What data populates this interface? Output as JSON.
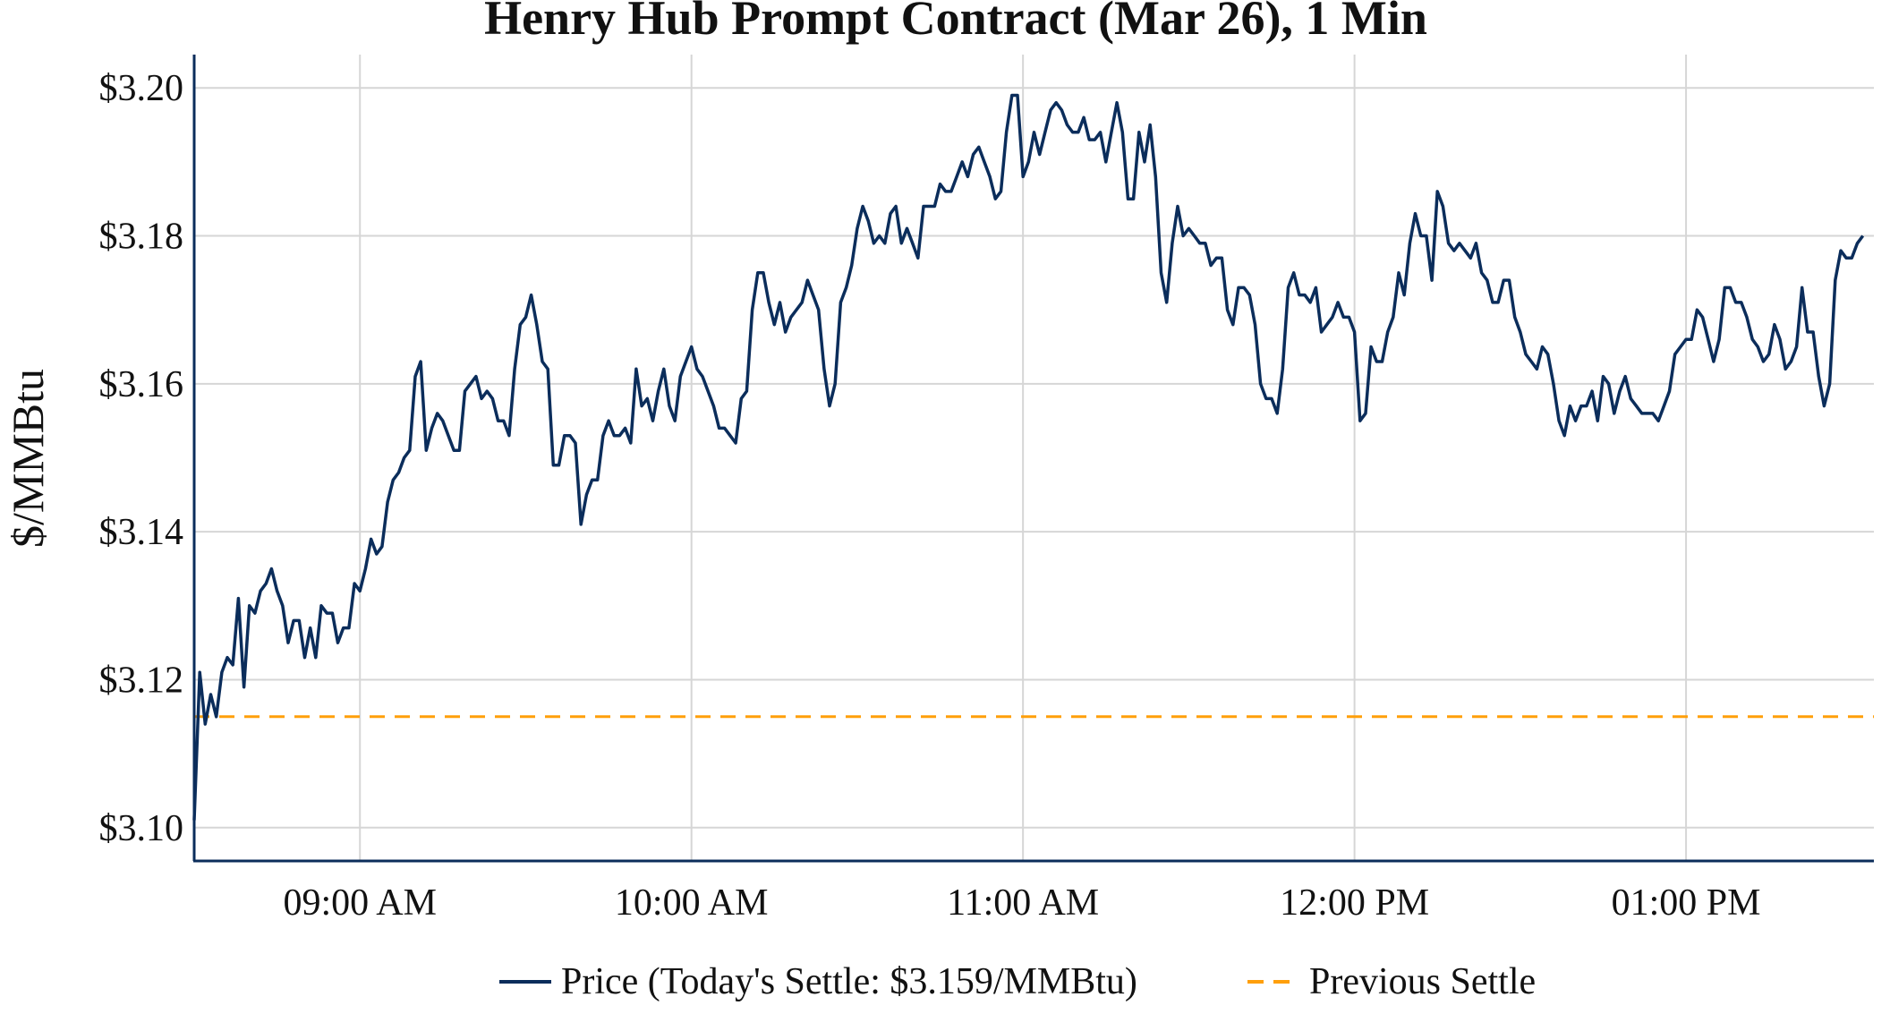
{
  "chart_data": {
    "type": "line",
    "title": "Henry Hub Prompt Contract (Mar 26), 1 Min",
    "xlabel": "",
    "ylabel": "$/MMBtu",
    "x_start": "08:30",
    "x_interval_minutes": 1,
    "xlim": [
      "08:30",
      "13:34"
    ],
    "ylim": [
      3.0955,
      3.2045
    ],
    "y_ticks": [
      3.1,
      3.12,
      3.14,
      3.16,
      3.18,
      3.2
    ],
    "y_tick_labels": [
      "$3.10",
      "$3.12",
      "$3.14",
      "$3.16",
      "$3.18",
      "$3.20"
    ],
    "x_ticks": [
      "09:00",
      "10:00",
      "11:00",
      "12:00",
      "13:00"
    ],
    "x_tick_labels": [
      "09:00 AM",
      "10:00 AM",
      "11:00 AM",
      "12:00 PM",
      "01:00 PM"
    ],
    "grid": true,
    "legend_position": "bottom-center",
    "series": [
      {
        "name": "Price (Today's Settle: $3.159/MMBtu)",
        "color": "#0b2d5b",
        "style": "solid",
        "values": [
          3.101,
          3.121,
          3.114,
          3.118,
          3.115,
          3.121,
          3.123,
          3.122,
          3.131,
          3.119,
          3.13,
          3.129,
          3.132,
          3.133,
          3.135,
          3.132,
          3.13,
          3.125,
          3.128,
          3.128,
          3.123,
          3.127,
          3.123,
          3.13,
          3.129,
          3.129,
          3.125,
          3.127,
          3.127,
          3.133,
          3.132,
          3.135,
          3.139,
          3.137,
          3.138,
          3.144,
          3.147,
          3.148,
          3.15,
          3.151,
          3.161,
          3.163,
          3.151,
          3.154,
          3.156,
          3.155,
          3.153,
          3.151,
          3.151,
          3.159,
          3.16,
          3.161,
          3.158,
          3.159,
          3.158,
          3.155,
          3.155,
          3.153,
          3.162,
          3.168,
          3.169,
          3.172,
          3.168,
          3.163,
          3.162,
          3.149,
          3.149,
          3.153,
          3.153,
          3.152,
          3.141,
          3.145,
          3.147,
          3.147,
          3.153,
          3.155,
          3.153,
          3.153,
          3.154,
          3.152,
          3.162,
          3.157,
          3.158,
          3.155,
          3.159,
          3.162,
          3.157,
          3.155,
          3.161,
          3.163,
          3.165,
          3.162,
          3.161,
          3.159,
          3.157,
          3.154,
          3.154,
          3.153,
          3.152,
          3.158,
          3.159,
          3.17,
          3.175,
          3.175,
          3.171,
          3.168,
          3.171,
          3.167,
          3.169,
          3.17,
          3.171,
          3.174,
          3.172,
          3.17,
          3.162,
          3.157,
          3.16,
          3.171,
          3.173,
          3.176,
          3.181,
          3.184,
          3.182,
          3.179,
          3.18,
          3.179,
          3.183,
          3.184,
          3.179,
          3.181,
          3.179,
          3.177,
          3.184,
          3.184,
          3.184,
          3.187,
          3.186,
          3.186,
          3.188,
          3.19,
          3.188,
          3.191,
          3.192,
          3.19,
          3.188,
          3.185,
          3.186,
          3.194,
          3.199,
          3.199,
          3.188,
          3.19,
          3.194,
          3.191,
          3.194,
          3.197,
          3.198,
          3.197,
          3.195,
          3.194,
          3.194,
          3.196,
          3.193,
          3.193,
          3.194,
          3.19,
          3.194,
          3.198,
          3.194,
          3.185,
          3.185,
          3.194,
          3.19,
          3.195,
          3.188,
          3.175,
          3.171,
          3.179,
          3.184,
          3.18,
          3.181,
          3.18,
          3.179,
          3.179,
          3.176,
          3.177,
          3.177,
          3.17,
          3.168,
          3.173,
          3.173,
          3.172,
          3.168,
          3.16,
          3.158,
          3.158,
          3.156,
          3.162,
          3.173,
          3.175,
          3.172,
          3.172,
          3.171,
          3.173,
          3.167,
          3.168,
          3.169,
          3.171,
          3.169,
          3.169,
          3.167,
          3.155,
          3.156,
          3.165,
          3.163,
          3.163,
          3.167,
          3.169,
          3.175,
          3.172,
          3.179,
          3.183,
          3.18,
          3.18,
          3.174,
          3.186,
          3.184,
          3.179,
          3.178,
          3.179,
          3.178,
          3.177,
          3.179,
          3.175,
          3.174,
          3.171,
          3.171,
          3.174,
          3.174,
          3.169,
          3.167,
          3.164,
          3.163,
          3.162,
          3.165,
          3.164,
          3.16,
          3.155,
          3.153,
          3.157,
          3.155,
          3.157,
          3.157,
          3.159,
          3.155,
          3.161,
          3.16,
          3.156,
          3.159,
          3.161,
          3.158,
          3.157,
          3.156,
          3.156,
          3.156,
          3.155,
          3.157,
          3.159,
          3.164,
          3.165,
          3.166,
          3.166,
          3.17,
          3.169,
          3.166,
          3.163,
          3.166,
          3.173,
          3.173,
          3.171,
          3.171,
          3.169,
          3.166,
          3.165,
          3.163,
          3.164,
          3.168,
          3.166,
          3.162,
          3.163,
          3.165,
          3.173,
          3.167,
          3.167,
          3.161,
          3.157,
          3.16,
          3.174,
          3.178,
          3.177,
          3.177,
          3.179,
          3.18
        ]
      },
      {
        "name": "Previous Settle",
        "color": "#ff9f0a",
        "style": "dashed",
        "value": 3.115
      }
    ]
  }
}
